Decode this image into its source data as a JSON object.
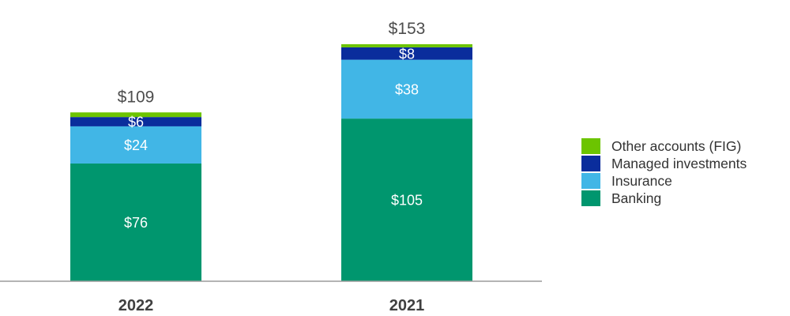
{
  "chart_data": {
    "type": "bar",
    "stacked": true,
    "categories": [
      "2022",
      "2021"
    ],
    "series": [
      {
        "name": "Banking",
        "color": "#00966e",
        "values": [
          76,
          105
        ],
        "labels": [
          "$76",
          "$105"
        ]
      },
      {
        "name": "Insurance",
        "color": "#41b6e6",
        "values": [
          24,
          38
        ],
        "labels": [
          "$24",
          "$38"
        ]
      },
      {
        "name": "Managed investments",
        "color": "#0a2d9c",
        "values": [
          6,
          8
        ],
        "labels": [
          "$6",
          "$8"
        ]
      },
      {
        "name": "Other accounts (FIG)",
        "color": "#6cc400",
        "values": [
          3,
          2
        ],
        "labels": [
          "",
          ""
        ]
      }
    ],
    "totals": [
      109,
      153
    ],
    "total_labels": [
      "$109",
      "$153"
    ],
    "ylim": [
      0,
      153
    ],
    "grid": false,
    "legend": "right",
    "legend_order": [
      "Other accounts (FIG)",
      "Managed investments",
      "Insurance",
      "Banking"
    ]
  }
}
